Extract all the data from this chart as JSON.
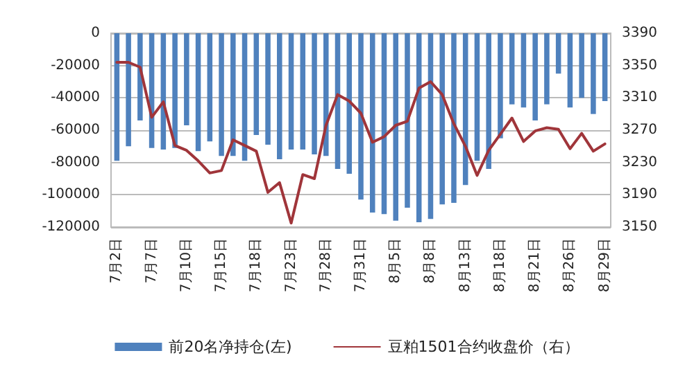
{
  "chart_data": {
    "type": "bar",
    "categories": [
      "7月2日",
      null,
      null,
      "7月7日",
      null,
      null,
      "7月10日",
      null,
      null,
      "7月15日",
      null,
      null,
      "7月18日",
      null,
      null,
      "7月23日",
      null,
      null,
      "7月28日",
      null,
      null,
      "7月31日",
      null,
      null,
      "8月5日",
      null,
      null,
      "8月8日",
      null,
      null,
      "8月13日",
      null,
      null,
      "8月18日",
      null,
      null,
      "8月21日",
      null,
      null,
      "8月26日",
      null,
      null,
      "8月29日"
    ],
    "series": [
      {
        "name": "前20名净持仓(左)",
        "color": "#4f81bd",
        "values": [
          -79000,
          -70000,
          -54000,
          -71000,
          -72000,
          -71000,
          -57000,
          -73000,
          -67000,
          -76000,
          -76000,
          -79000,
          -63000,
          -69000,
          -78000,
          -72000,
          -72000,
          -75000,
          -76000,
          -84000,
          -87000,
          -103000,
          -111000,
          -112000,
          -116000,
          -108000,
          -117000,
          -115000,
          -106000,
          -105000,
          -94000,
          -79000,
          -84000,
          -65000,
          -44000,
          -46000,
          -54000,
          -44000,
          -25000,
          -46000,
          -40000,
          -50000,
          -42000
        ]
      },
      {
        "name": "豆粕1501合约收盘价（右）",
        "type": "line",
        "axis": "y2",
        "color": "#a0353a",
        "values": [
          3354,
          3354,
          3348,
          3286,
          3305,
          3251,
          3245,
          3232,
          3217,
          3220,
          3258,
          3251,
          3244,
          3193,
          3205,
          3155,
          3215,
          3210,
          3276,
          3314,
          3306,
          3291,
          3255,
          3262,
          3276,
          3281,
          3322,
          3330,
          3314,
          3278,
          3250,
          3214,
          3245,
          3265,
          3285,
          3256,
          3269,
          3273,
          3271,
          3247,
          3266,
          3244,
          3253
        ]
      }
    ],
    "ylim": [
      -120000,
      0
    ],
    "yticks": [
      -120000,
      -100000,
      -80000,
      -60000,
      -40000,
      -20000,
      0
    ],
    "y2lim": [
      3150,
      3390
    ],
    "y2ticks": [
      3150,
      3190,
      3230,
      3270,
      3310,
      3350,
      3390
    ],
    "grid": "y",
    "legend": "bottom",
    "marker": "none",
    "line_style": "solid"
  }
}
